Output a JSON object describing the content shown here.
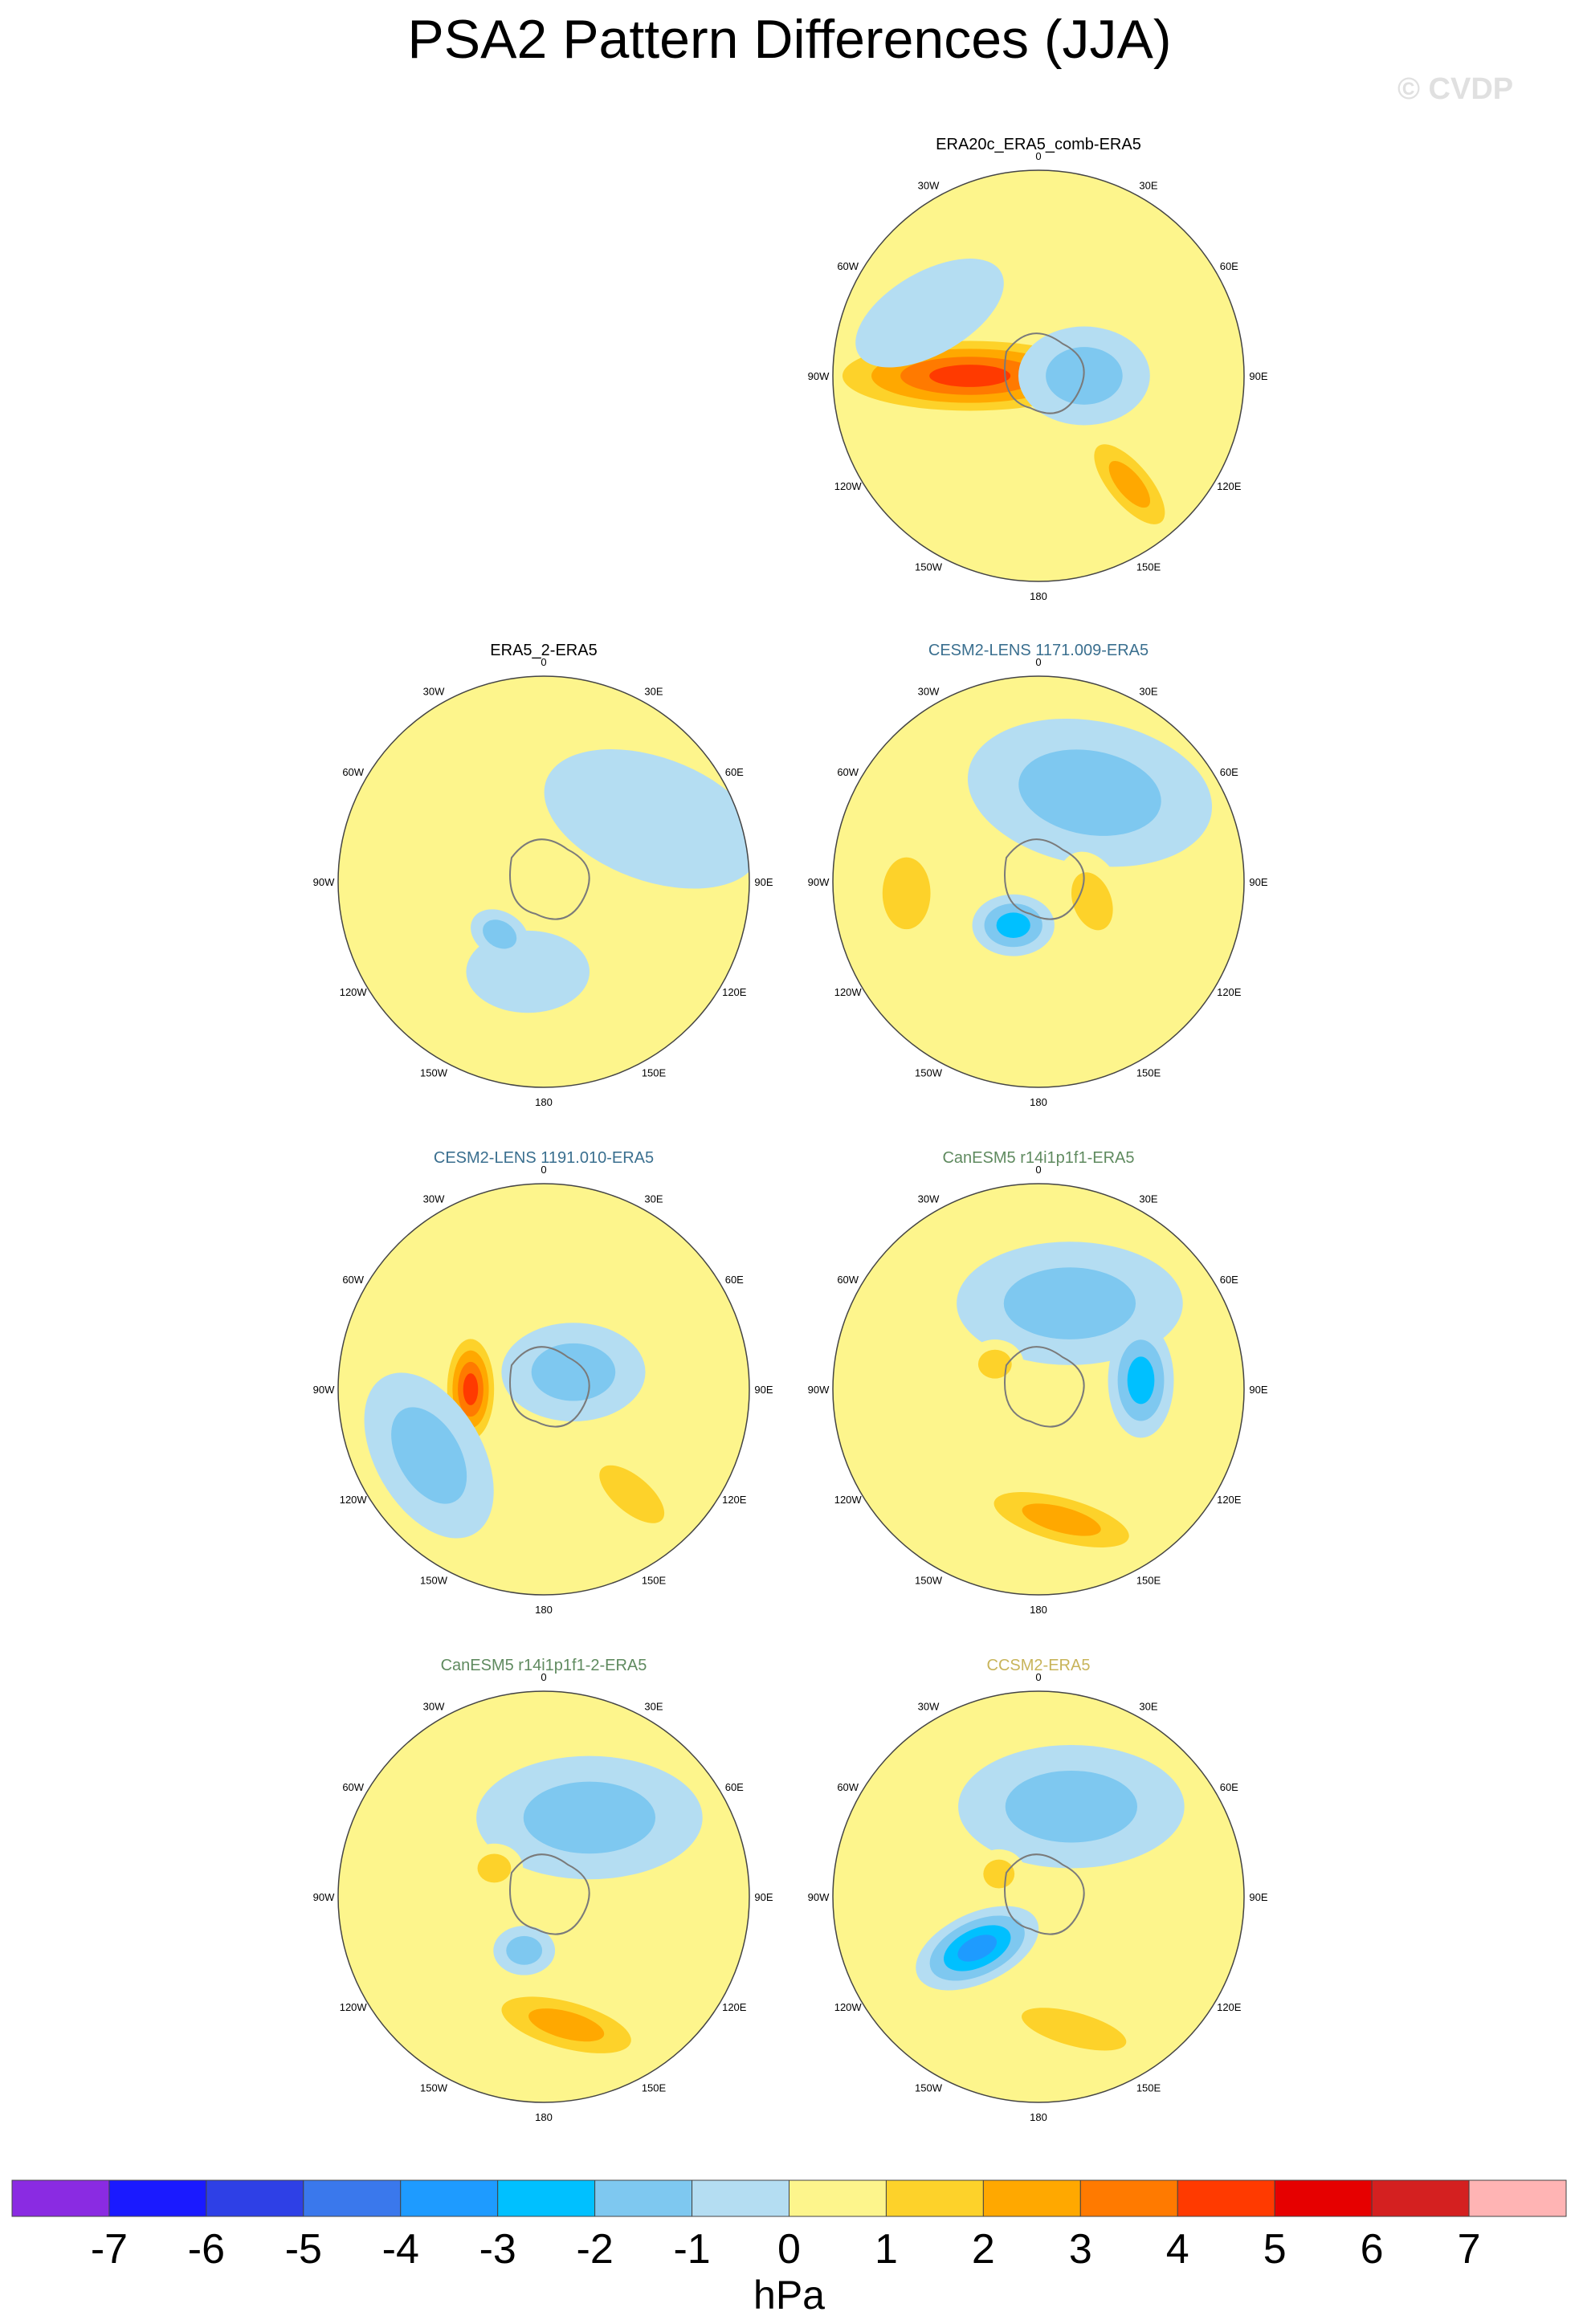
{
  "title": "PSA2 Pattern Differences (JJA)",
  "watermark": "© CVDP",
  "colorbar": {
    "colors": [
      "#8a2be2",
      "#1a1aff",
      "#2e40e6",
      "#3a78ec",
      "#1e9bff",
      "#00c0ff",
      "#7ec8f0",
      "#b4ddf2",
      "#fdf58c",
      "#fdd22a",
      "#ffa800",
      "#ff7a00",
      "#ff3a00",
      "#e60000",
      "#d42020",
      "#ffb4b4"
    ],
    "labels": [
      "-7",
      "-6",
      "-5",
      "-4",
      "-3",
      "-2",
      "-1",
      "0",
      "1",
      "2",
      "3",
      "4",
      "5",
      "6",
      "7"
    ],
    "units": "hPa"
  },
  "lon_labels": [
    "0",
    "30E",
    "60E",
    "90E",
    "120E",
    "150E",
    "180",
    "150W",
    "120W",
    "90W",
    "60W",
    "30W"
  ],
  "panels": [
    {
      "name": "ERA20c_ERA5_comb-ERA5",
      "title_color": "#000000",
      "bg": "#fdf58c",
      "blobs": [
        {
          "lon": 270,
          "colat": 30,
          "rx": 0.17,
          "ry": 0.62,
          "rot": -90,
          "cls": [
            2,
            3,
            4,
            5
          ]
        },
        {
          "lon": 90,
          "colat": 20,
          "rx": 0.32,
          "ry": 0.24,
          "rot": 0,
          "cls": [
            -1,
            -2
          ]
        },
        {
          "lon": 140,
          "colat": 62,
          "rx": 0.34,
          "ry": 0.14,
          "rot": 50,
          "cls": [
            1,
            2,
            3
          ]
        },
        {
          "lon": 300,
          "colat": 55,
          "rx": 0.4,
          "ry": 0.2,
          "rot": -30,
          "cls": [
            -1
          ]
        }
      ]
    },
    {
      "name": "ERA5_2-ERA5",
      "title_color": "#000000",
      "bg": "#fdf58c",
      "blobs": [
        {
          "lon": 60,
          "colat": 55,
          "rx": 0.55,
          "ry": 0.3,
          "rot": 20,
          "cls": [
            -1
          ]
        },
        {
          "lon": 190,
          "colat": 40,
          "rx": 0.3,
          "ry": 0.2,
          "rot": 0,
          "cls": [
            -1
          ]
        },
        {
          "lon": 220,
          "colat": 30,
          "rx": 0.15,
          "ry": 0.11,
          "rot": 30,
          "cls": [
            -1,
            -2
          ]
        }
      ]
    },
    {
      "name": "CESM2-LENS 1171.009-ERA5",
      "title_color": "#3a6f8f",
      "bg": "#fdf58c",
      "blobs": [
        {
          "lon": 30,
          "colat": 45,
          "rx": 0.6,
          "ry": 0.35,
          "rot": 10,
          "cls": [
            -1,
            -2
          ]
        },
        {
          "lon": 210,
          "colat": 22,
          "rx": 0.2,
          "ry": 0.15,
          "rot": 0,
          "cls": [
            -1,
            -2,
            -3
          ]
        },
        {
          "lon": 265,
          "colat": 58,
          "rx": 0.2,
          "ry": 0.3,
          "rot": 0,
          "cls": [
            1,
            2
          ]
        },
        {
          "lon": 110,
          "colat": 25,
          "rx": 0.16,
          "ry": 0.25,
          "rot": -20,
          "cls": [
            1,
            2
          ]
        }
      ]
    },
    {
      "name": "CESM2-LENS 1191.010-ERA5",
      "title_color": "#3a6f8f",
      "bg": "#fdf58c",
      "blobs": [
        {
          "lon": 270,
          "colat": 32,
          "rx": 0.14,
          "ry": 0.3,
          "rot": 0,
          "cls": [
            1,
            2,
            3,
            4,
            5
          ]
        },
        {
          "lon": 60,
          "colat": 15,
          "rx": 0.35,
          "ry": 0.24,
          "rot": 0,
          "cls": [
            -1,
            -2
          ]
        },
        {
          "lon": 140,
          "colat": 60,
          "rx": 0.33,
          "ry": 0.15,
          "rot": 40,
          "cls": [
            1,
            2
          ]
        },
        {
          "lon": 240,
          "colat": 58,
          "rx": 0.26,
          "ry": 0.44,
          "rot": -30,
          "cls": [
            -1,
            -2
          ]
        }
      ]
    },
    {
      "name": "CanESM5 r14i1p1f1-ERA5",
      "title_color": "#5f8a5f",
      "bg": "#fdf58c",
      "blobs": [
        {
          "lon": 20,
          "colat": 40,
          "rx": 0.55,
          "ry": 0.3,
          "rot": 0,
          "cls": [
            -1,
            -2
          ]
        },
        {
          "lon": 170,
          "colat": 58,
          "rx": 0.48,
          "ry": 0.15,
          "rot": 15,
          "cls": [
            1,
            2,
            3
          ]
        },
        {
          "lon": 85,
          "colat": 45,
          "rx": 0.16,
          "ry": 0.28,
          "rot": 0,
          "cls": [
            -1,
            -2,
            -3
          ]
        },
        {
          "lon": 300,
          "colat": 22,
          "rx": 0.14,
          "ry": 0.12,
          "rot": 0,
          "cls": [
            1,
            2
          ]
        }
      ]
    },
    {
      "name": "CanESM5 r14i1p1f1-2-ERA5",
      "title_color": "#5f8a5f",
      "bg": "#fdf58c",
      "blobs": [
        {
          "lon": 30,
          "colat": 40,
          "rx": 0.55,
          "ry": 0.3,
          "rot": 0,
          "cls": [
            -1,
            -2
          ]
        },
        {
          "lon": 170,
          "colat": 57,
          "rx": 0.46,
          "ry": 0.16,
          "rot": 15,
          "cls": [
            1,
            2,
            3
          ]
        },
        {
          "lon": 200,
          "colat": 25,
          "rx": 0.15,
          "ry": 0.12,
          "rot": 0,
          "cls": [
            -1,
            -2
          ]
        },
        {
          "lon": 300,
          "colat": 25,
          "rx": 0.14,
          "ry": 0.12,
          "rot": 0,
          "cls": [
            1,
            2
          ]
        }
      ]
    },
    {
      "name": "CCSM2-ERA5",
      "title_color": "#c8b45a",
      "bg": "#fdf58c",
      "blobs": [
        {
          "lon": 20,
          "colat": 42,
          "rx": 0.55,
          "ry": 0.3,
          "rot": 0,
          "cls": [
            -1,
            -2
          ]
        },
        {
          "lon": 230,
          "colat": 35,
          "rx": 0.32,
          "ry": 0.17,
          "rot": -25,
          "cls": [
            -1,
            -2,
            -3,
            -4
          ]
        },
        {
          "lon": 165,
          "colat": 60,
          "rx": 0.45,
          "ry": 0.14,
          "rot": 15,
          "cls": [
            1,
            2
          ]
        },
        {
          "lon": 300,
          "colat": 20,
          "rx": 0.13,
          "ry": 0.12,
          "rot": 0,
          "cls": [
            1,
            2
          ]
        }
      ]
    }
  ]
}
